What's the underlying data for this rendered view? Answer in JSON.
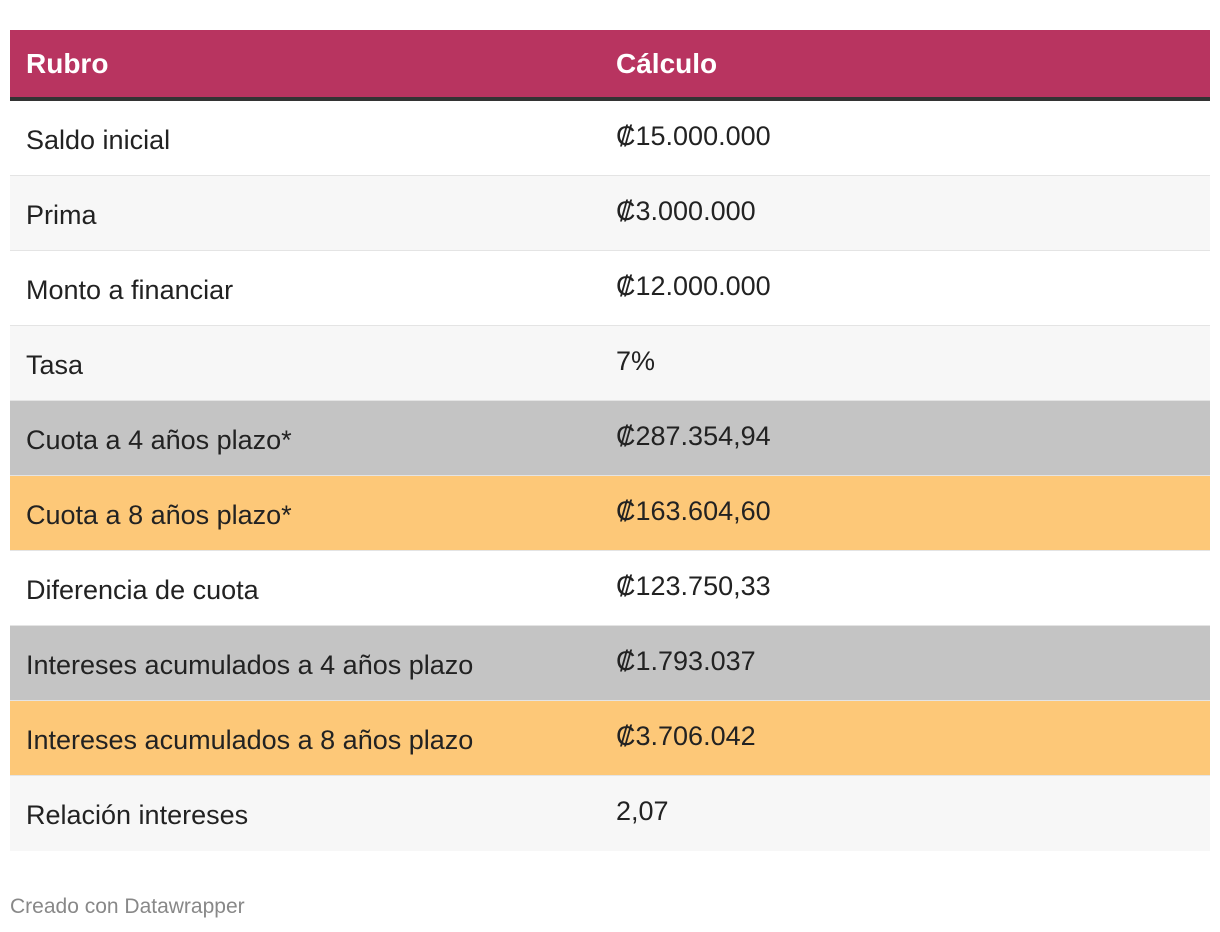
{
  "table": {
    "headers": {
      "rubro": "Rubro",
      "calculo": "Cálculo"
    },
    "header_color": "#b83460",
    "rows": [
      {
        "rubro": "Saldo inicial",
        "calculo": "₡15.000.000",
        "bg": "#ffffff"
      },
      {
        "rubro": "Prima",
        "calculo": "₡3.000.000",
        "bg": "#f7f7f7"
      },
      {
        "rubro": "Monto a financiar",
        "calculo": "₡12.000.000",
        "bg": "#ffffff"
      },
      {
        "rubro": "Tasa",
        "calculo": "7%",
        "bg": "#f7f7f7"
      },
      {
        "rubro": "Cuota a 4 años plazo*",
        "calculo": "₡287.354,94",
        "bg": "#c4c4c4"
      },
      {
        "rubro": "Cuota a 8 años plazo*",
        "calculo": "₡163.604,60",
        "bg": "#fdc878"
      },
      {
        "rubro": "Diferencia de cuota",
        "calculo": "₡123.750,33",
        "bg": "#ffffff"
      },
      {
        "rubro": "Intereses acumulados a 4 años plazo",
        "calculo": "₡1.793.037",
        "bg": "#c4c4c4"
      },
      {
        "rubro": "Intereses acumulados a 8 años plazo",
        "calculo": "₡3.706.042",
        "bg": "#fdc878"
      },
      {
        "rubro": "Relación intereses",
        "calculo": "2,07",
        "bg": "#f7f7f7"
      }
    ]
  },
  "chart_data": {
    "type": "table",
    "columns": [
      "Rubro",
      "Cálculo"
    ],
    "rows": [
      [
        "Saldo inicial",
        "₡15.000.000"
      ],
      [
        "Prima",
        "₡3.000.000"
      ],
      [
        "Monto a financiar",
        "₡12.000.000"
      ],
      [
        "Tasa",
        "7%"
      ],
      [
        "Cuota a 4 años plazo*",
        "₡287.354,94"
      ],
      [
        "Cuota a 8 años plazo*",
        "₡163.604,60"
      ],
      [
        "Diferencia de cuota",
        "₡123.750,33"
      ],
      [
        "Intereses acumulados a 4 años plazo",
        "₡1.793.037"
      ],
      [
        "Intereses acumulados a 8 años plazo",
        "₡3.706.042"
      ],
      [
        "Relación intereses",
        "2,07"
      ]
    ]
  },
  "footer": {
    "credit": "Creado con Datawrapper"
  }
}
